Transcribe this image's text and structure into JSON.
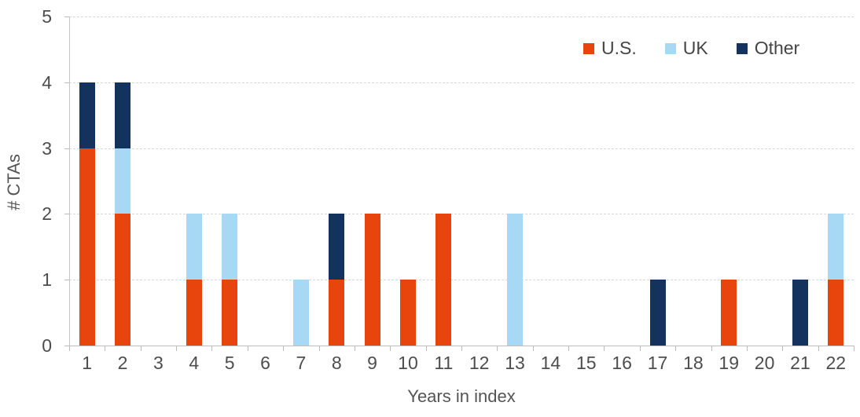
{
  "chart_data": {
    "type": "bar",
    "stacked": true,
    "title": "",
    "xlabel": "Years in index",
    "ylabel": "# CTAs",
    "categories": [
      1,
      2,
      3,
      4,
      5,
      6,
      7,
      8,
      9,
      10,
      11,
      12,
      13,
      14,
      15,
      16,
      17,
      18,
      19,
      20,
      21,
      22
    ],
    "series": [
      {
        "name": "U.S.",
        "color": "#e8450e",
        "values": [
          3,
          2,
          0,
          1,
          1,
          0,
          0,
          1,
          2,
          1,
          2,
          0,
          0,
          0,
          0,
          0,
          0,
          0,
          1,
          0,
          0,
          1
        ]
      },
      {
        "name": "UK",
        "color": "#a7d9f4",
        "values": [
          0,
          1,
          0,
          1,
          1,
          0,
          1,
          0,
          0,
          0,
          0,
          0,
          2,
          0,
          0,
          0,
          0,
          0,
          0,
          0,
          0,
          1
        ]
      },
      {
        "name": "Other",
        "color": "#13335e",
        "values": [
          1,
          1,
          0,
          0,
          0,
          0,
          0,
          1,
          0,
          0,
          0,
          0,
          0,
          0,
          0,
          0,
          1,
          0,
          0,
          0,
          1,
          0
        ]
      }
    ],
    "ylim": [
      0,
      5
    ],
    "yticks": [
      0,
      1,
      2,
      3,
      4,
      5
    ],
    "grid": "horizontal-dashed",
    "legend_position": "top-right"
  },
  "colors": {
    "us_series": "#e8450e",
    "uk_series": "#a7d9f4",
    "other_series": "#13335e",
    "gridline": "#d8d8d8",
    "axis_line": "#bdbdbd",
    "tick_text": "#4d4d4d",
    "axis_title_text": "#545454",
    "legend_text": "#454545",
    "background": "#ffffff"
  }
}
